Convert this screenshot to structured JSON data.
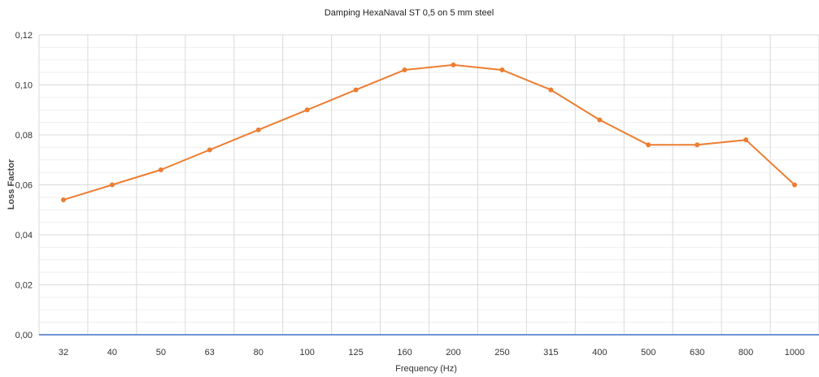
{
  "chart_data": {
    "type": "line",
    "title": "Damping HexaNaval ST 0,5 on 5 mm steel",
    "xlabel": "Frequency (Hz)",
    "ylabel": "Loss Factor",
    "categories": [
      "32",
      "40",
      "50",
      "63",
      "80",
      "100",
      "125",
      "160",
      "200",
      "250",
      "315",
      "400",
      "500",
      "630",
      "800",
      "1000"
    ],
    "series": [
      {
        "values": [
          0.054,
          0.06,
          0.066,
          0.074,
          0.082,
          0.09,
          0.098,
          0.106,
          0.108,
          0.106,
          0.098,
          0.086,
          0.076,
          0.076,
          0.078,
          0.06
        ]
      }
    ],
    "ylim": [
      0,
      0.12
    ],
    "yticks": [
      "0,00",
      "0,02",
      "0,04",
      "0,06",
      "0,08",
      "0,10",
      "0,12"
    ],
    "y_minor_step": 0.005,
    "grid": true,
    "legend": "none",
    "colors": {
      "line": "#ed7d31",
      "x_axis": "#4472c4",
      "major_grid": "#d9d9d9",
      "minor_grid": "#efefef"
    }
  }
}
